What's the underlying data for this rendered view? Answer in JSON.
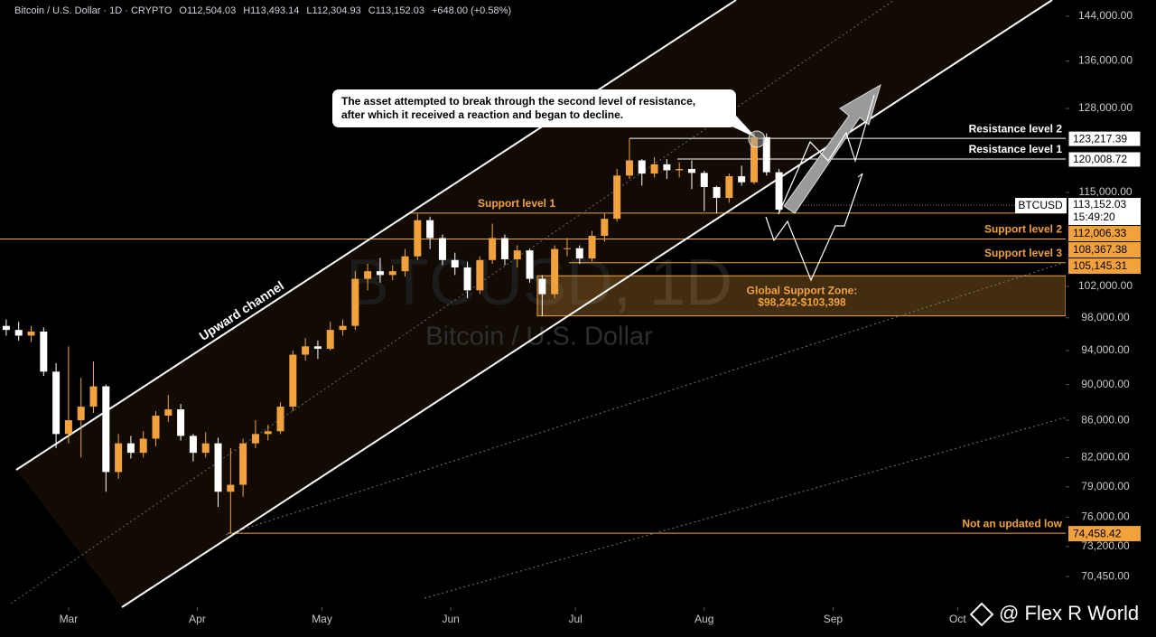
{
  "chart_data": {
    "type": "candlestick",
    "header": {
      "symbol": "Bitcoin / U.S. Dollar · 1D · CRYPTO",
      "open": "O112,504.03",
      "high": "H113,493.14",
      "low": "L112,304.93",
      "close": "C113,152.03",
      "change": "+648.00 (+0.58%)"
    },
    "watermark": {
      "title": "BTCUSD, 1D",
      "subtitle": "Bitcoin / U.S. Dollar"
    },
    "annotations": {
      "callout": [
        "The asset attempted to break through the second level of resistance,",
        "after which it received a reaction and began to decline."
      ],
      "channel": "Upward channel"
    },
    "log_scale": true,
    "up_color": "#f2a23c",
    "down_color": "#ffffff",
    "ylim": [
      68300,
      147000
    ],
    "yticks": [
      {
        "value": 144000,
        "label": "144,000.00"
      },
      {
        "value": 136000,
        "label": "136,000.00"
      },
      {
        "value": 128000,
        "label": "128,000.00"
      },
      {
        "value": 115000,
        "label": "115,000.00"
      },
      {
        "value": 102000,
        "label": "102,000.00"
      },
      {
        "value": 98000,
        "label": "98,000.00"
      },
      {
        "value": 94000,
        "label": "94,000.00"
      },
      {
        "value": 90000,
        "label": "90,000.00"
      },
      {
        "value": 86000,
        "label": "86,000.00"
      },
      {
        "value": 82000,
        "label": "82,000.00"
      },
      {
        "value": 79000,
        "label": "79,000.00"
      },
      {
        "value": 76000,
        "label": "76,000.00"
      },
      {
        "value": 73200,
        "label": "73,200.00"
      },
      {
        "value": 70450,
        "label": "70,450.00"
      }
    ],
    "xlim": [
      -16.5,
      240
    ],
    "xticks": [
      {
        "value": 0,
        "label": "Mar"
      },
      {
        "value": 31,
        "label": "Apr"
      },
      {
        "value": 61,
        "label": "May"
      },
      {
        "value": 92,
        "label": "Jun"
      },
      {
        "value": 122,
        "label": "Jul"
      },
      {
        "value": 153,
        "label": "Aug"
      },
      {
        "value": 184,
        "label": "Sep"
      },
      {
        "value": 214,
        "label": "Oct"
      }
    ],
    "x": [
      -15,
      -12,
      -9,
      -6,
      -3,
      0,
      3,
      6,
      9,
      12,
      15,
      18,
      21,
      24,
      27,
      30,
      33,
      36,
      39,
      42,
      45,
      48,
      51,
      54,
      57,
      60,
      63,
      66,
      69,
      72,
      75,
      78,
      81,
      84,
      87,
      90,
      93,
      96,
      99,
      102,
      105,
      108,
      111,
      114,
      117,
      120,
      123,
      126,
      129,
      132,
      135,
      138,
      141,
      144,
      147,
      150,
      153,
      156,
      159,
      162,
      165,
      168,
      171,
      174
    ],
    "open": [
      97000,
      96500,
      95800,
      96300,
      91500,
      84500,
      86000,
      87500,
      89800,
      80500,
      83500,
      82500,
      84000,
      86500,
      87200,
      84300,
      82500,
      83500,
      78500,
      79200,
      83500,
      84500,
      84800,
      87500,
      93500,
      94500,
      94200,
      96500,
      97000,
      103000,
      104000,
      103500,
      104000,
      106000,
      111000,
      108500,
      105500,
      104500,
      101500,
      105500,
      108500,
      105600,
      106800,
      103000,
      101000,
      107000,
      107100,
      105700,
      108800,
      111200,
      117500,
      119800,
      117800,
      119200,
      118300,
      118500,
      117900,
      115800,
      114200,
      117400,
      116500,
      123400,
      118000,
      112504.03
    ],
    "high": [
      97800,
      97500,
      97000,
      96800,
      92500,
      94500,
      90800,
      92700,
      90000,
      84500,
      84300,
      84800,
      87000,
      88800,
      87800,
      84500,
      84700,
      84100,
      83000,
      84000,
      86000,
      85500,
      88000,
      94000,
      95500,
      95200,
      97500,
      97800,
      104000,
      105000,
      105800,
      104800,
      107000,
      111900,
      111500,
      109000,
      106500,
      105300,
      106000,
      110500,
      109000,
      107500,
      107000,
      103500,
      107500,
      108500,
      107500,
      109500,
      112000,
      118500,
      123217.39,
      120000,
      120300,
      120000,
      119500,
      119800,
      118200,
      116000,
      117800,
      119000,
      124100,
      124000,
      118500,
      113493.14
    ],
    "low": [
      95800,
      95200,
      95000,
      91000,
      83000,
      83500,
      82000,
      86800,
      78500,
      79800,
      81900,
      82000,
      83200,
      85800,
      83800,
      81600,
      82000,
      77000,
      74458.42,
      78000,
      83000,
      83800,
      84500,
      87000,
      92800,
      93000,
      94000,
      95800,
      96500,
      101500,
      102500,
      102800,
      103300,
      105500,
      107000,
      104800,
      103500,
      100500,
      101000,
      105000,
      104800,
      104500,
      102500,
      98242,
      100500,
      106000,
      105000,
      105300,
      108000,
      110800,
      117000,
      116000,
      117200,
      117000,
      117200,
      115500,
      112300,
      112006.33,
      113500,
      116000,
      116200,
      117500,
      112300,
      112304.93
    ],
    "close": [
      96500,
      95800,
      96300,
      91500,
      84500,
      86000,
      87500,
      89800,
      80500,
      83500,
      82500,
      84000,
      86500,
      87200,
      84300,
      82500,
      83500,
      78500,
      79200,
      83500,
      84500,
      84800,
      87500,
      93500,
      94500,
      94200,
      96500,
      97000,
      103000,
      104000,
      103500,
      104000,
      106000,
      111000,
      108500,
      105500,
      104500,
      101500,
      105500,
      108500,
      105600,
      106800,
      103000,
      101000,
      107000,
      107100,
      105700,
      108800,
      111200,
      117500,
      119800,
      117800,
      119200,
      118300,
      118500,
      117900,
      115800,
      114200,
      117400,
      116500,
      123400,
      118000,
      112504.03,
      113152.03
    ],
    "levels": [
      {
        "name": "Resistance level 2",
        "value": 123217.39,
        "label": "123,217.39",
        "color": "#ffffff"
      },
      {
        "name": "Resistance level 1",
        "value": 120008.72,
        "label": "120,008.72",
        "color": "#ffffff"
      },
      {
        "name": "Support level 1",
        "value": 112006.33,
        "label": "112,006.33",
        "color": "#f2a23c"
      },
      {
        "name": "Support level 2",
        "value": 108367.38,
        "label": "108,367.38",
        "color": "#f2a23c"
      },
      {
        "name": "Support level 3",
        "value": 105145.31,
        "label": "105,145.31",
        "color": "#f2a23c"
      },
      {
        "name": "Not an updated low",
        "value": 74458.42,
        "label": "74,458.42",
        "color": "#f2a23c"
      }
    ],
    "last_price": {
      "symbol": "BTCUSD",
      "value": 113152.03,
      "label": "113,152.03",
      "countdown": "15:49:20"
    },
    "zone": {
      "title": "Global Support Zone:",
      "range_label": "$98,242-$103,398",
      "low": 98242,
      "high": 103398,
      "color": "#f2a23c"
    },
    "brand": "@ Flex R World"
  }
}
